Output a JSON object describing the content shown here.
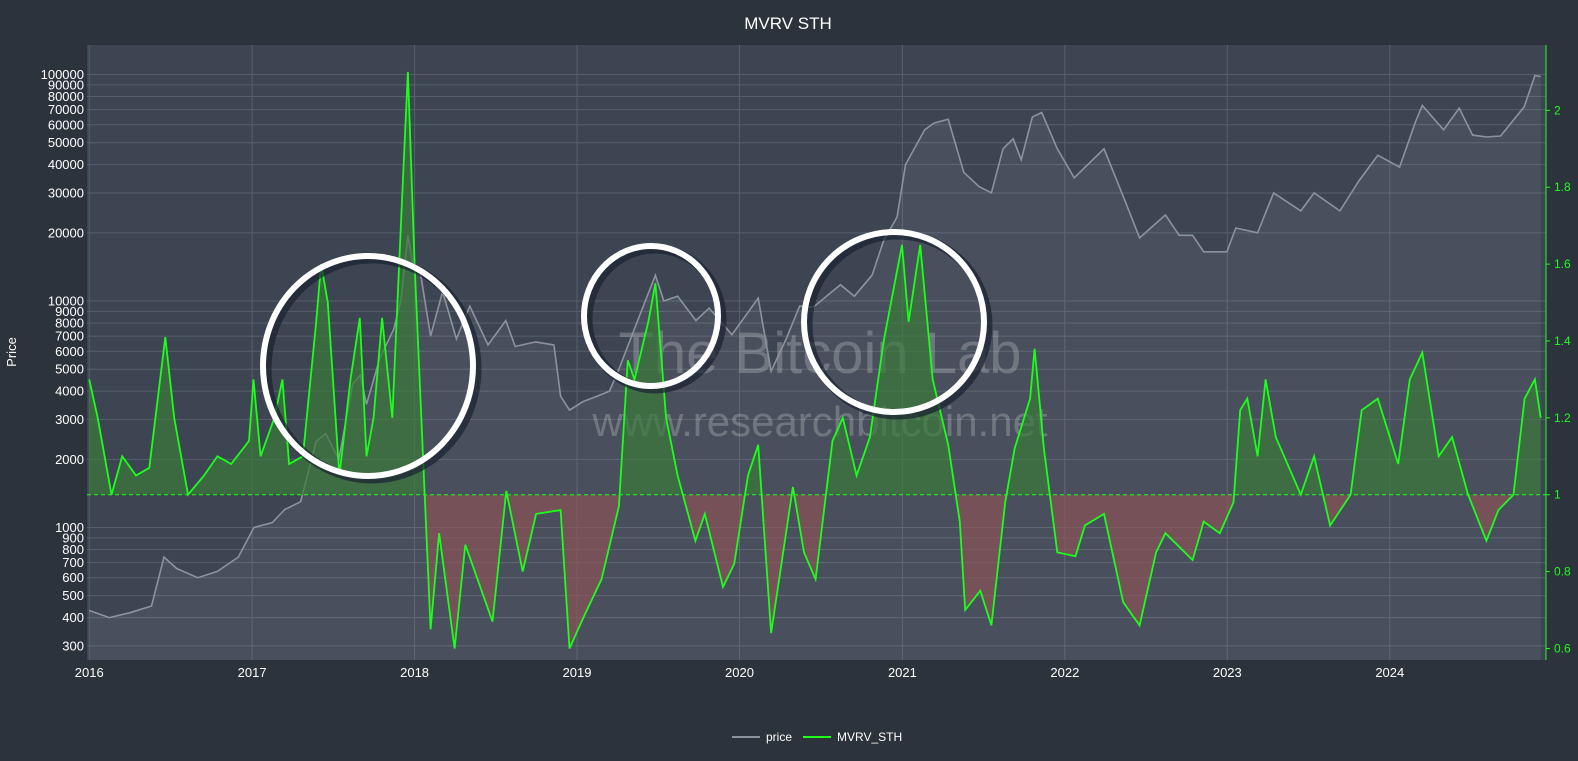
{
  "chart_data": {
    "type": "line",
    "title": "MVRV STH",
    "ylabel": "Price",
    "y2label": "",
    "y_scale": "log",
    "ylim": [
      260,
      135000
    ],
    "y2lim": [
      0.57,
      2.17
    ],
    "x_ticks": [
      "2016",
      "2017",
      "2018",
      "2019",
      "2020",
      "2021",
      "2022",
      "2023",
      "2024"
    ],
    "y_ticks": [
      "100000",
      "90000",
      "80000",
      "70000",
      "60000",
      "50000",
      "40000",
      "30000",
      "20000",
      "10000",
      "9000",
      "8000",
      "7000",
      "6000",
      "5000",
      "4000",
      "3000",
      "2000",
      "1000",
      "900",
      "800",
      "700",
      "600",
      "500",
      "400",
      "300"
    ],
    "y_tick_values": [
      100000,
      90000,
      80000,
      70000,
      60000,
      50000,
      40000,
      30000,
      20000,
      10000,
      9000,
      8000,
      7000,
      6000,
      5000,
      4000,
      3000,
      2000,
      1000,
      900,
      800,
      700,
      600,
      500,
      400,
      300
    ],
    "y2_ticks": [
      "2",
      "1.8",
      "1.6",
      "1.4",
      "1.2",
      "1",
      "0.8",
      "0.6"
    ],
    "y2_tick_values": [
      2,
      1.8,
      1.6,
      1.4,
      1.2,
      1,
      0.8,
      0.6
    ],
    "reference_line": 1,
    "grid": true,
    "legend_position": "bottom-center",
    "colors": {
      "background": "#2d333c",
      "plot_bg": "#3e4552",
      "price": "#8d939e",
      "mvrv": "#1bff1b",
      "fill_above": "#3a7a3a",
      "fill_below": "#8a5457",
      "annotation": "#ffffff"
    },
    "watermark": {
      "line1": "The Bitcoin Lab",
      "line2": "www.researchbitcoin.net"
    },
    "series": [
      {
        "name": "price",
        "axis": "left",
        "points": [
          [
            "2016-01-01",
            430
          ],
          [
            "2016-02-15",
            400
          ],
          [
            "2016-04-01",
            420
          ],
          [
            "2016-05-20",
            450
          ],
          [
            "2016-06-17",
            740
          ],
          [
            "2016-07-15",
            660
          ],
          [
            "2016-09-01",
            600
          ],
          [
            "2016-10-15",
            640
          ],
          [
            "2016-12-01",
            740
          ],
          [
            "2017-01-05",
            1000
          ],
          [
            "2017-02-15",
            1050
          ],
          [
            "2017-03-15",
            1200
          ],
          [
            "2017-04-20",
            1300
          ],
          [
            "2017-05-25",
            2400
          ],
          [
            "2017-06-15",
            2600
          ],
          [
            "2017-07-15",
            2000
          ],
          [
            "2017-08-15",
            4300
          ],
          [
            "2017-09-01",
            4700
          ],
          [
            "2017-09-15",
            3500
          ],
          [
            "2017-10-15",
            5600
          ],
          [
            "2017-11-15",
            7500
          ],
          [
            "2017-12-01",
            10000
          ],
          [
            "2017-12-17",
            19500
          ],
          [
            "2017-12-30",
            14000
          ],
          [
            "2018-01-15",
            13000
          ],
          [
            "2018-02-06",
            7000
          ],
          [
            "2018-03-05",
            11000
          ],
          [
            "2018-04-05",
            6800
          ],
          [
            "2018-05-05",
            9500
          ],
          [
            "2018-06-15",
            6400
          ],
          [
            "2018-07-25",
            8200
          ],
          [
            "2018-08-15",
            6300
          ],
          [
            "2018-09-30",
            6600
          ],
          [
            "2018-11-10",
            6400
          ],
          [
            "2018-11-25",
            3800
          ],
          [
            "2018-12-15",
            3300
          ],
          [
            "2019-01-15",
            3600
          ],
          [
            "2019-02-15",
            3800
          ],
          [
            "2019-03-15",
            4000
          ],
          [
            "2019-04-05",
            5000
          ],
          [
            "2019-05-15",
            8000
          ],
          [
            "2019-06-26",
            13000
          ],
          [
            "2019-07-15",
            10000
          ],
          [
            "2019-08-15",
            10500
          ],
          [
            "2019-09-25",
            8200
          ],
          [
            "2019-10-25",
            9300
          ],
          [
            "2019-12-15",
            7100
          ],
          [
            "2020-02-12",
            10300
          ],
          [
            "2020-03-12",
            4900
          ],
          [
            "2020-04-15",
            6800
          ],
          [
            "2020-05-15",
            9500
          ],
          [
            "2020-06-15",
            9400
          ],
          [
            "2020-07-27",
            11000
          ],
          [
            "2020-08-15",
            11800
          ],
          [
            "2020-09-15",
            10500
          ],
          [
            "2020-10-25",
            13000
          ],
          [
            "2020-11-20",
            18500
          ],
          [
            "2020-12-20",
            23500
          ],
          [
            "2021-01-08",
            40000
          ],
          [
            "2021-02-20",
            57000
          ],
          [
            "2021-03-13",
            61000
          ],
          [
            "2021-04-14",
            63500
          ],
          [
            "2021-05-19",
            37000
          ],
          [
            "2021-06-22",
            32000
          ],
          [
            "2021-07-20",
            30000
          ],
          [
            "2021-08-15",
            47000
          ],
          [
            "2021-09-07",
            52000
          ],
          [
            "2021-09-25",
            42000
          ],
          [
            "2021-10-20",
            65000
          ],
          [
            "2021-11-10",
            68000
          ],
          [
            "2021-12-15",
            47000
          ],
          [
            "2022-01-22",
            35000
          ],
          [
            "2022-03-30",
            47000
          ],
          [
            "2022-05-12",
            29000
          ],
          [
            "2022-06-18",
            19000
          ],
          [
            "2022-08-15",
            24000
          ],
          [
            "2022-09-15",
            19500
          ],
          [
            "2022-10-15",
            19500
          ],
          [
            "2022-11-09",
            16500
          ],
          [
            "2022-12-31",
            16500
          ],
          [
            "2023-01-20",
            21000
          ],
          [
            "2023-03-10",
            20000
          ],
          [
            "2023-04-15",
            30000
          ],
          [
            "2023-06-15",
            25000
          ],
          [
            "2023-07-15",
            30000
          ],
          [
            "2023-09-11",
            25000
          ],
          [
            "2023-10-24",
            34000
          ],
          [
            "2023-12-05",
            44000
          ],
          [
            "2024-01-23",
            39000
          ],
          [
            "2024-02-28",
            62000
          ],
          [
            "2024-03-14",
            73000
          ],
          [
            "2024-05-01",
            57000
          ],
          [
            "2024-06-05",
            71000
          ],
          [
            "2024-07-05",
            54000
          ],
          [
            "2024-08-05",
            53000
          ],
          [
            "2024-09-06",
            53500
          ],
          [
            "2024-10-29",
            72000
          ],
          [
            "2024-11-22",
            99000
          ],
          [
            "2024-12-05",
            98000
          ]
        ]
      },
      {
        "name": "MVRV_STH",
        "axis": "right",
        "points": [
          [
            "2016-01-01",
            1.3
          ],
          [
            "2016-01-20",
            1.2
          ],
          [
            "2016-02-20",
            1.0
          ],
          [
            "2016-03-15",
            1.1
          ],
          [
            "2016-04-15",
            1.05
          ],
          [
            "2016-05-15",
            1.07
          ],
          [
            "2016-06-20",
            1.41
          ],
          [
            "2016-07-10",
            1.2
          ],
          [
            "2016-08-10",
            1.0
          ],
          [
            "2016-09-15",
            1.05
          ],
          [
            "2016-10-15",
            1.1
          ],
          [
            "2016-11-15",
            1.08
          ],
          [
            "2016-12-25",
            1.14
          ],
          [
            "2017-01-04",
            1.3
          ],
          [
            "2017-01-20",
            1.1
          ],
          [
            "2017-02-20",
            1.2
          ],
          [
            "2017-03-10",
            1.3
          ],
          [
            "2017-03-25",
            1.08
          ],
          [
            "2017-04-25",
            1.1
          ],
          [
            "2017-05-25",
            1.45
          ],
          [
            "2017-06-05",
            1.6
          ],
          [
            "2017-06-20",
            1.5
          ],
          [
            "2017-07-16",
            1.05
          ],
          [
            "2017-08-10",
            1.3
          ],
          [
            "2017-08-31",
            1.46
          ],
          [
            "2017-09-15",
            1.1
          ],
          [
            "2017-10-01",
            1.2
          ],
          [
            "2017-10-20",
            1.46
          ],
          [
            "2017-11-12",
            1.2
          ],
          [
            "2017-12-05",
            1.8
          ],
          [
            "2017-12-17",
            2.1
          ],
          [
            "2018-01-01",
            1.6
          ],
          [
            "2018-01-20",
            1.1
          ],
          [
            "2018-02-06",
            0.65
          ],
          [
            "2018-02-25",
            0.9
          ],
          [
            "2018-04-01",
            0.6
          ],
          [
            "2018-04-25",
            0.87
          ],
          [
            "2018-06-25",
            0.67
          ],
          [
            "2018-07-26",
            1.01
          ],
          [
            "2018-09-01",
            0.8
          ],
          [
            "2018-10-01",
            0.95
          ],
          [
            "2018-11-25",
            0.96
          ],
          [
            "2018-12-15",
            0.6
          ],
          [
            "2019-01-15",
            0.68
          ],
          [
            "2019-02-25",
            0.78
          ],
          [
            "2019-04-05",
            0.97
          ],
          [
            "2019-04-25",
            1.35
          ],
          [
            "2019-05-10",
            1.3
          ],
          [
            "2019-06-10",
            1.45
          ],
          [
            "2019-06-26",
            1.55
          ],
          [
            "2019-07-20",
            1.2
          ],
          [
            "2019-08-15",
            1.05
          ],
          [
            "2019-09-24",
            0.88
          ],
          [
            "2019-10-15",
            0.95
          ],
          [
            "2019-11-25",
            0.76
          ],
          [
            "2019-12-20",
            0.82
          ],
          [
            "2020-01-20",
            1.05
          ],
          [
            "2020-02-12",
            1.13
          ],
          [
            "2020-03-12",
            0.64
          ],
          [
            "2020-04-30",
            1.02
          ],
          [
            "2020-05-25",
            0.85
          ],
          [
            "2020-06-20",
            0.78
          ],
          [
            "2020-07-28",
            1.14
          ],
          [
            "2020-08-20",
            1.2
          ],
          [
            "2020-09-20",
            1.05
          ],
          [
            "2020-10-20",
            1.15
          ],
          [
            "2020-11-20",
            1.4
          ],
          [
            "2020-12-31",
            1.65
          ],
          [
            "2021-01-15",
            1.45
          ],
          [
            "2021-02-10",
            1.65
          ],
          [
            "2021-03-10",
            1.3
          ],
          [
            "2021-04-14",
            1.13
          ],
          [
            "2021-05-10",
            0.93
          ],
          [
            "2021-05-22",
            0.7
          ],
          [
            "2021-06-25",
            0.75
          ],
          [
            "2021-07-20",
            0.66
          ],
          [
            "2021-08-20",
            0.98
          ],
          [
            "2021-09-10",
            1.12
          ],
          [
            "2021-10-15",
            1.25
          ],
          [
            "2021-10-25",
            1.38
          ],
          [
            "2021-11-15",
            1.12
          ],
          [
            "2021-12-15",
            0.85
          ],
          [
            "2022-01-25",
            0.84
          ],
          [
            "2022-02-15",
            0.92
          ],
          [
            "2022-03-30",
            0.95
          ],
          [
            "2022-05-12",
            0.72
          ],
          [
            "2022-06-18",
            0.66
          ],
          [
            "2022-07-25",
            0.85
          ],
          [
            "2022-08-15",
            0.9
          ],
          [
            "2022-10-15",
            0.83
          ],
          [
            "2022-11-09",
            0.93
          ],
          [
            "2022-12-15",
            0.9
          ],
          [
            "2023-01-15",
            0.98
          ],
          [
            "2023-01-30",
            1.22
          ],
          [
            "2023-02-15",
            1.25
          ],
          [
            "2023-03-10",
            1.1
          ],
          [
            "2023-03-28",
            1.3
          ],
          [
            "2023-04-20",
            1.15
          ],
          [
            "2023-06-15",
            1.0
          ],
          [
            "2023-07-15",
            1.1
          ],
          [
            "2023-08-20",
            0.92
          ],
          [
            "2023-10-05",
            1.0
          ],
          [
            "2023-10-30",
            1.22
          ],
          [
            "2023-12-05",
            1.25
          ],
          [
            "2024-01-20",
            1.08
          ],
          [
            "2024-02-15",
            1.3
          ],
          [
            "2024-03-14",
            1.37
          ],
          [
            "2024-04-20",
            1.1
          ],
          [
            "2024-05-20",
            1.15
          ],
          [
            "2024-06-25",
            1.0
          ],
          [
            "2024-08-05",
            0.88
          ],
          [
            "2024-09-01",
            0.96
          ],
          [
            "2024-10-05",
            1.0
          ],
          [
            "2024-10-30",
            1.25
          ],
          [
            "2024-11-22",
            1.3
          ],
          [
            "2024-12-05",
            1.2
          ]
        ]
      }
    ]
  }
}
